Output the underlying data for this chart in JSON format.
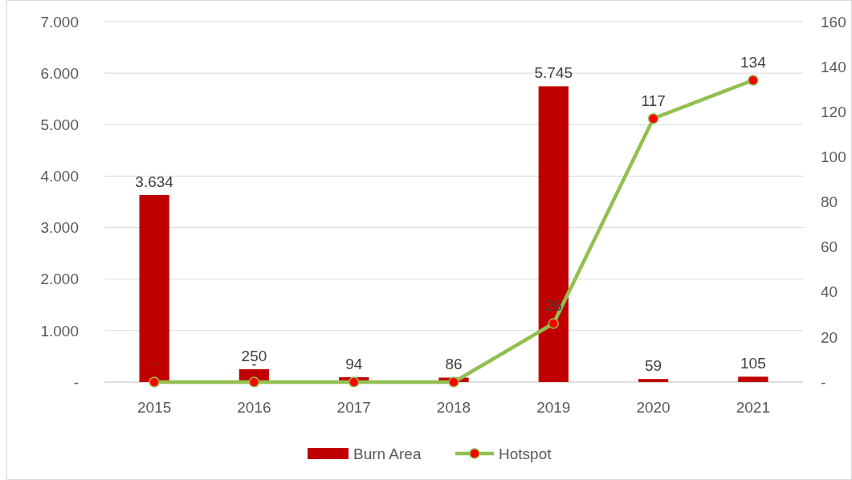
{
  "chart_data": {
    "type": "bar",
    "categories": [
      "2015",
      "2016",
      "2017",
      "2018",
      "2019",
      "2020",
      "2021"
    ],
    "series": [
      {
        "name": "Burn Area",
        "color": "#c00000",
        "values": [
          3634,
          250,
          94,
          86,
          5745,
          59,
          105
        ],
        "value_labels": [
          "3.634",
          "250",
          "94",
          "86",
          "5.745",
          "59",
          "105"
        ]
      },
      {
        "name": "Hotspot",
        "type": "line",
        "axis": "y2",
        "color": "#92c050",
        "marker": "circle",
        "values": [
          0,
          0,
          0,
          0,
          26,
          117,
          134
        ],
        "value_labels": [
          "-",
          "-",
          null,
          null,
          "26",
          "117",
          "134"
        ]
      }
    ],
    "ylim": [
      0,
      7000
    ],
    "yticks": [
      {
        "value": 0,
        "label": "-"
      },
      {
        "value": 1000,
        "label": "1.000"
      },
      {
        "value": 2000,
        "label": "2.000"
      },
      {
        "value": 3000,
        "label": "3.000"
      },
      {
        "value": 4000,
        "label": "4.000"
      },
      {
        "value": 5000,
        "label": "5.000"
      },
      {
        "value": 6000,
        "label": "6.000"
      },
      {
        "value": 7000,
        "label": "7.000"
      }
    ],
    "y2lim": [
      0,
      160
    ],
    "y2ticks": [
      {
        "value": 0,
        "label": "-"
      },
      20,
      40,
      60,
      80,
      100,
      120,
      140,
      160
    ],
    "grid": "y",
    "legend": "bottom"
  }
}
